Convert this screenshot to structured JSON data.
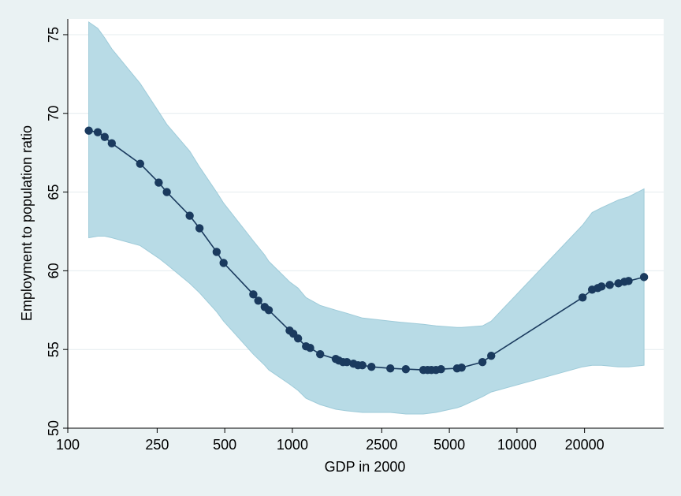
{
  "chart_data": {
    "type": "line",
    "title": "",
    "xlabel": "GDP in 2000",
    "ylabel": "Employment to population ratio",
    "x_scale": "log",
    "xlim": [
      100,
      45000
    ],
    "ylim": [
      50,
      76
    ],
    "x_ticks": [
      100,
      250,
      500,
      1000,
      2500,
      5000,
      10000,
      20000
    ],
    "x_tick_labels": [
      "100",
      "250",
      "500",
      "1000",
      "2500",
      "5000",
      "10000",
      "20000"
    ],
    "y_ticks": [
      50,
      55,
      60,
      65,
      70,
      75
    ],
    "y_tick_labels": [
      "50",
      "55",
      "60",
      "65",
      "70",
      "75"
    ],
    "grid": "horizontal",
    "legend": "none",
    "colors": {
      "line": "#1a3a5e",
      "marker": "#1a3a5e",
      "band_fill": "#b8dbe6",
      "band_edge": "#9ecbd9",
      "plot_bg": "#ffffff",
      "page_bg": "#eaf2f3"
    },
    "series": [
      {
        "type": "line+markers",
        "x": [
          124,
          136,
          146,
          157,
          210,
          254,
          276,
          349,
          386,
          460,
          494,
          670,
          705,
          753,
          785,
          972,
          1010,
          1060,
          1150,
          1200,
          1330,
          1560,
          1610,
          1680,
          1750,
          1870,
          1960,
          2050,
          2250,
          2730,
          3200,
          3830,
          4000,
          4160,
          4360,
          4590,
          5410,
          5670,
          7020,
          7680,
          19600,
          21600,
          22900,
          23800,
          25900,
          28300,
          30100,
          31400,
          36800
        ],
        "y": [
          68.9,
          68.8,
          68.5,
          68.1,
          66.8,
          65.6,
          65.0,
          63.5,
          62.7,
          61.2,
          60.5,
          58.5,
          58.1,
          57.7,
          57.5,
          56.2,
          56.0,
          55.7,
          55.2,
          55.1,
          54.7,
          54.4,
          54.3,
          54.2,
          54.2,
          54.1,
          54.0,
          54.0,
          53.9,
          53.8,
          53.75,
          53.7,
          53.7,
          53.7,
          53.7,
          53.75,
          53.8,
          53.85,
          54.2,
          54.6,
          58.3,
          58.8,
          58.9,
          59.0,
          59.1,
          59.2,
          59.3,
          59.35,
          59.6
        ]
      },
      {
        "type": "confidence_band",
        "x": [
          124,
          136,
          146,
          157,
          210,
          254,
          276,
          349,
          386,
          460,
          494,
          670,
          753,
          785,
          972,
          1060,
          1150,
          1330,
          1560,
          1750,
          2050,
          2730,
          3200,
          3830,
          4360,
          5410,
          5670,
          7020,
          7680,
          19600,
          21600,
          23800,
          28300,
          31400,
          36800
        ],
        "upper": [
          75.8,
          75.4,
          74.8,
          74.1,
          71.9,
          70.1,
          69.3,
          67.6,
          66.6,
          65.0,
          64.3,
          61.9,
          61.0,
          60.6,
          59.3,
          58.9,
          58.3,
          57.8,
          57.5,
          57.3,
          57.0,
          56.8,
          56.7,
          56.6,
          56.5,
          56.4,
          56.4,
          56.5,
          56.8,
          62.9,
          63.7,
          64.0,
          64.5,
          64.7,
          65.2
        ],
        "lower": [
          62.1,
          62.2,
          62.2,
          62.1,
          61.6,
          60.8,
          60.4,
          59.2,
          58.6,
          57.4,
          56.8,
          54.7,
          54.0,
          53.7,
          52.8,
          52.4,
          51.9,
          51.5,
          51.2,
          51.1,
          51.0,
          51.0,
          50.9,
          50.9,
          51.0,
          51.3,
          51.4,
          52.0,
          52.3,
          53.9,
          54.0,
          54.0,
          53.9,
          53.9,
          54.0
        ]
      }
    ]
  }
}
